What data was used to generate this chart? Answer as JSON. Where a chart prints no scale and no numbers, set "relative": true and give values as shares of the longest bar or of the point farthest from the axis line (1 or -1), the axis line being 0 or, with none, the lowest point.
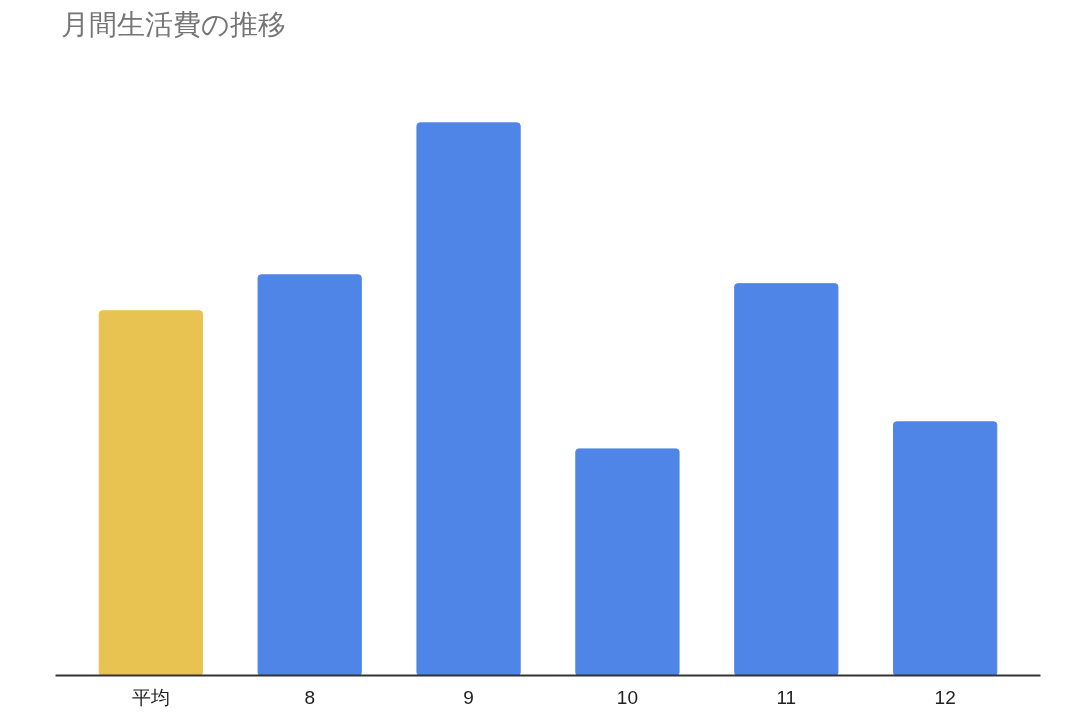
{
  "chart_data": {
    "type": "bar",
    "title": "月間生活費の推移",
    "categories": [
      "平均",
      "8",
      "9",
      "10",
      "11",
      "12"
    ],
    "values": [
      0.66,
      0.725,
      1,
      0.41,
      0.709,
      0.459
    ],
    "colors": [
      "#e9c352",
      "#5085e8",
      "#5085e8",
      "#5085e8",
      "#5085e8",
      "#5085e8"
    ],
    "relative": true
  }
}
